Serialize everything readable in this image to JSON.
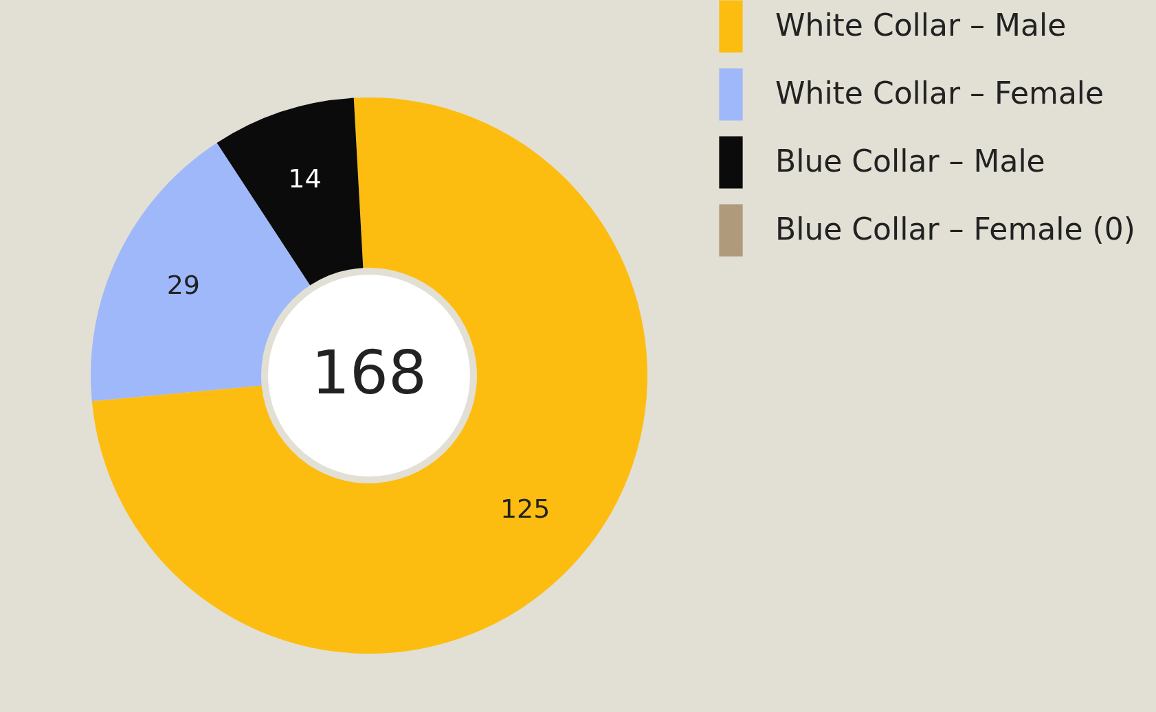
{
  "chart_data": {
    "type": "donut",
    "categories": [
      "White Collar – Male",
      "White Collar – Female",
      "Blue Collar – Male",
      "Blue Collar – Female (0)"
    ],
    "values": [
      125,
      29,
      14,
      0
    ],
    "colors": [
      "#fdbd10",
      "#9fb8fa",
      "#0b0b0b",
      "#b09a7c"
    ],
    "value_labels": [
      "125",
      "29",
      "14",
      null
    ],
    "annotations": [
      "168"
    ],
    "legend": "right"
  }
}
